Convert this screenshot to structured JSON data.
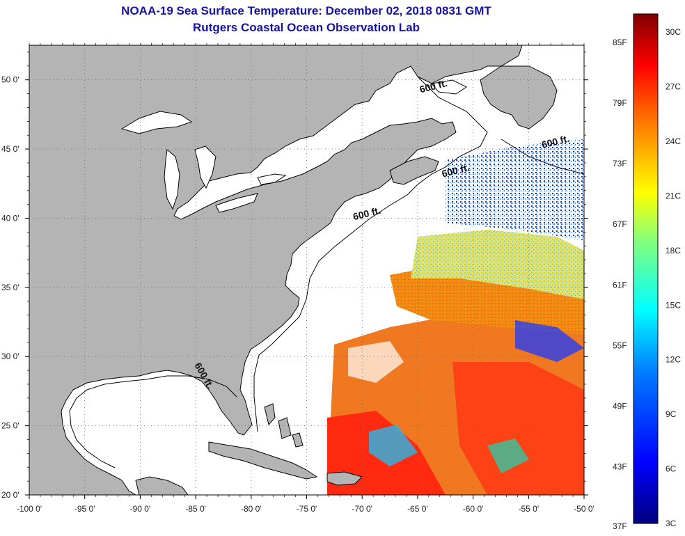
{
  "header": {
    "title": "NOAA-19 Sea Surface Temperature:  December 02, 2018 0831 GMT",
    "subtitle": "Rutgers Coastal Ocean Observation Lab"
  },
  "map": {
    "lon_range": [
      -100,
      -50
    ],
    "lat_range": [
      20,
      52.5
    ],
    "lon_ticks": [
      {
        "value": -100,
        "label": "-100 0'"
      },
      {
        "value": -95,
        "label": "-95 0'"
      },
      {
        "value": -90,
        "label": "-90 0'"
      },
      {
        "value": -85,
        "label": "-85 0'"
      },
      {
        "value": -80,
        "label": "-80 0'"
      },
      {
        "value": -75,
        "label": "-75 0'"
      },
      {
        "value": -70,
        "label": "-70 0'"
      },
      {
        "value": -65,
        "label": "-65 0'"
      },
      {
        "value": -60,
        "label": "-60 0'"
      },
      {
        "value": -55,
        "label": "-55 0'"
      },
      {
        "value": -50,
        "label": "-50 0'"
      }
    ],
    "lat_ticks": [
      {
        "value": 20,
        "label": "20 0'"
      },
      {
        "value": 25,
        "label": "25 0'"
      },
      {
        "value": 30,
        "label": "30 0'"
      },
      {
        "value": 35,
        "label": "35 0'"
      },
      {
        "value": 40,
        "label": "40 0'"
      },
      {
        "value": 45,
        "label": "45 0'"
      },
      {
        "value": 50,
        "label": "50 0'"
      }
    ],
    "contour_labels": [
      {
        "text": "600 ft.",
        "lon": -63.5,
        "lat": 49.3
      },
      {
        "text": "600 ft.",
        "lon": -52.5,
        "lat": 45.3
      },
      {
        "text": "600 ft.",
        "lon": -61.5,
        "lat": 43.2
      },
      {
        "text": "600 ft.",
        "lon": -69.5,
        "lat": 40.1
      },
      {
        "text": "600 ft.",
        "lon": -84.5,
        "lat": 28.5
      }
    ],
    "colors": {
      "land": "#b4b4b4",
      "water": "#ffffff",
      "coast": "#000000"
    }
  },
  "colorbar": {
    "fahrenheit_labels": [
      {
        "value": "85F",
        "c": 29.44
      },
      {
        "value": "79F",
        "c": 26.11
      },
      {
        "value": "73F",
        "c": 22.78
      },
      {
        "value": "67F",
        "c": 19.44
      },
      {
        "value": "61F",
        "c": 16.11
      },
      {
        "value": "55F",
        "c": 12.78
      },
      {
        "value": "49F",
        "c": 9.44
      },
      {
        "value": "43F",
        "c": 6.11
      },
      {
        "value": "37F",
        "c": 2.78
      }
    ],
    "celsius_labels": [
      {
        "value": "30C",
        "c": 30
      },
      {
        "value": "27C",
        "c": 27
      },
      {
        "value": "24C",
        "c": 24
      },
      {
        "value": "21C",
        "c": 21
      },
      {
        "value": "18C",
        "c": 18
      },
      {
        "value": "15C",
        "c": 15
      },
      {
        "value": "12C",
        "c": 12
      },
      {
        "value": "9C",
        "c": 9
      },
      {
        "value": "6C",
        "c": 6
      },
      {
        "value": "3C",
        "c": 3
      }
    ],
    "range_c": [
      3,
      31
    ],
    "stops": [
      "#00007f",
      "#0000ff",
      "#007fff",
      "#00ffff",
      "#7fff7f",
      "#ffff00",
      "#ff7f00",
      "#ff0000",
      "#7f0000"
    ]
  }
}
